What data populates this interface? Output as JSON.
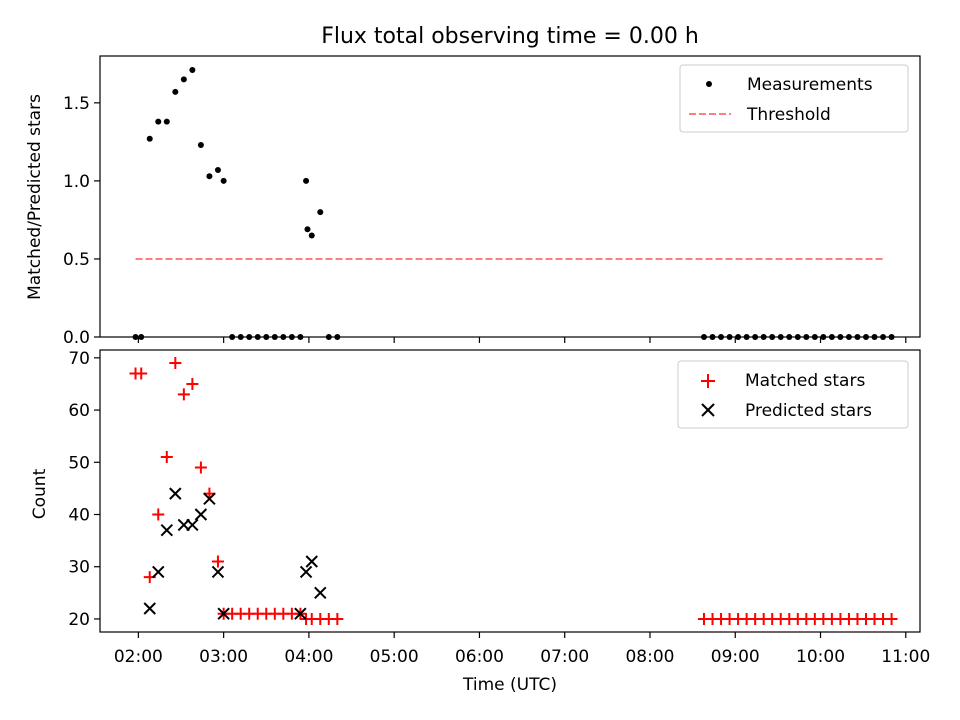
{
  "figure_title": "Flux total observing time = 0.00 h",
  "chart_data": [
    {
      "type": "scatter",
      "ylabel": "Matched/Predicted stars",
      "ylim": [
        0,
        1.8
      ],
      "yticks": [
        0.0,
        0.5,
        1.0,
        1.5
      ],
      "ytick_labels": [
        "0.0",
        "0.5",
        "1.0",
        "1.5"
      ],
      "xlim": [
        "01:33",
        "11:10"
      ],
      "legend_placement": "top-right",
      "series": [
        {
          "name": "Measurements",
          "kind": "points",
          "color": "#000000",
          "x": [
            "01:58",
            "02:02",
            "02:08",
            "02:14",
            "02:20",
            "02:26",
            "02:32",
            "02:38",
            "02:44",
            "02:50",
            "02:56",
            "03:00",
            "03:06",
            "03:12",
            "03:18",
            "03:24",
            "03:30",
            "03:36",
            "03:42",
            "03:48",
            "03:54",
            "03:58",
            "03:59",
            "04:02",
            "04:08",
            "04:14",
            "04:20",
            "08:38",
            "08:44",
            "08:50",
            "08:56",
            "09:02",
            "09:08",
            "09:14",
            "09:20",
            "09:26",
            "09:32",
            "09:38",
            "09:44",
            "09:50",
            "09:56",
            "10:02",
            "10:08",
            "10:14",
            "10:20",
            "10:26",
            "10:32",
            "10:38",
            "10:44",
            "10:50"
          ],
          "y": [
            0,
            0,
            1.27,
            1.38,
            1.38,
            1.57,
            1.65,
            1.71,
            1.23,
            1.03,
            1.07,
            1.0,
            0,
            0,
            0,
            0,
            0,
            0,
            0,
            0,
            0,
            1.0,
            0.69,
            0.65,
            0.8,
            0,
            0,
            0,
            0,
            0,
            0,
            0,
            0,
            0,
            0,
            0,
            0,
            0,
            0,
            0,
            0,
            0,
            0,
            0,
            0,
            0,
            0,
            0,
            0,
            0
          ]
        },
        {
          "name": "Threshold",
          "kind": "dashed-line",
          "color": "#ff7f7f",
          "x": [
            "01:58",
            "10:44"
          ],
          "y": [
            0.5,
            0.5
          ]
        }
      ]
    },
    {
      "type": "scatter",
      "xlabel": "Time (UTC)",
      "ylabel": "Count",
      "ylim": [
        17.5,
        71.5
      ],
      "yticks": [
        20,
        30,
        40,
        50,
        60,
        70
      ],
      "ytick_labels": [
        "20",
        "30",
        "40",
        "50",
        "60",
        "70"
      ],
      "xlim": [
        "01:33",
        "11:10"
      ],
      "xtick_labels": [
        "02:00",
        "03:00",
        "04:00",
        "05:00",
        "06:00",
        "07:00",
        "08:00",
        "09:00",
        "10:00",
        "11:00"
      ],
      "legend_placement": "top-right",
      "series": [
        {
          "name": "Matched stars",
          "kind": "plus",
          "color": "#ff0000",
          "x": [
            "01:58",
            "02:02",
            "02:08",
            "02:14",
            "02:20",
            "02:26",
            "02:32",
            "02:38",
            "02:44",
            "02:50",
            "02:56",
            "03:00",
            "03:06",
            "03:12",
            "03:18",
            "03:24",
            "03:30",
            "03:36",
            "03:42",
            "03:48",
            "03:54",
            "03:58",
            "04:02",
            "04:08",
            "04:14",
            "04:20",
            "08:38",
            "08:44",
            "08:50",
            "08:56",
            "09:02",
            "09:08",
            "09:14",
            "09:20",
            "09:26",
            "09:32",
            "09:38",
            "09:44",
            "09:50",
            "09:56",
            "10:02",
            "10:08",
            "10:14",
            "10:20",
            "10:26",
            "10:32",
            "10:38",
            "10:44",
            "10:50"
          ],
          "y": [
            67,
            67,
            28,
            40,
            51,
            69,
            63,
            65,
            49,
            44,
            31,
            21,
            21,
            21,
            21,
            21,
            21,
            21,
            21,
            21,
            21,
            20,
            20,
            20,
            20,
            20,
            20,
            20,
            20,
            20,
            20,
            20,
            20,
            20,
            20,
            20,
            20,
            20,
            20,
            20,
            20,
            20,
            20,
            20,
            20,
            20,
            20,
            20,
            20
          ]
        },
        {
          "name": "Predicted stars",
          "kind": "x",
          "color": "#000000",
          "x": [
            "02:08",
            "02:14",
            "02:20",
            "02:26",
            "02:32",
            "02:38",
            "02:44",
            "02:50",
            "02:56",
            "03:00",
            "03:54",
            "03:58",
            "04:02",
            "04:08"
          ],
          "y": [
            22,
            29,
            37,
            44,
            38,
            38,
            40,
            43,
            29,
            21,
            21,
            29,
            31,
            25
          ]
        }
      ]
    }
  ]
}
